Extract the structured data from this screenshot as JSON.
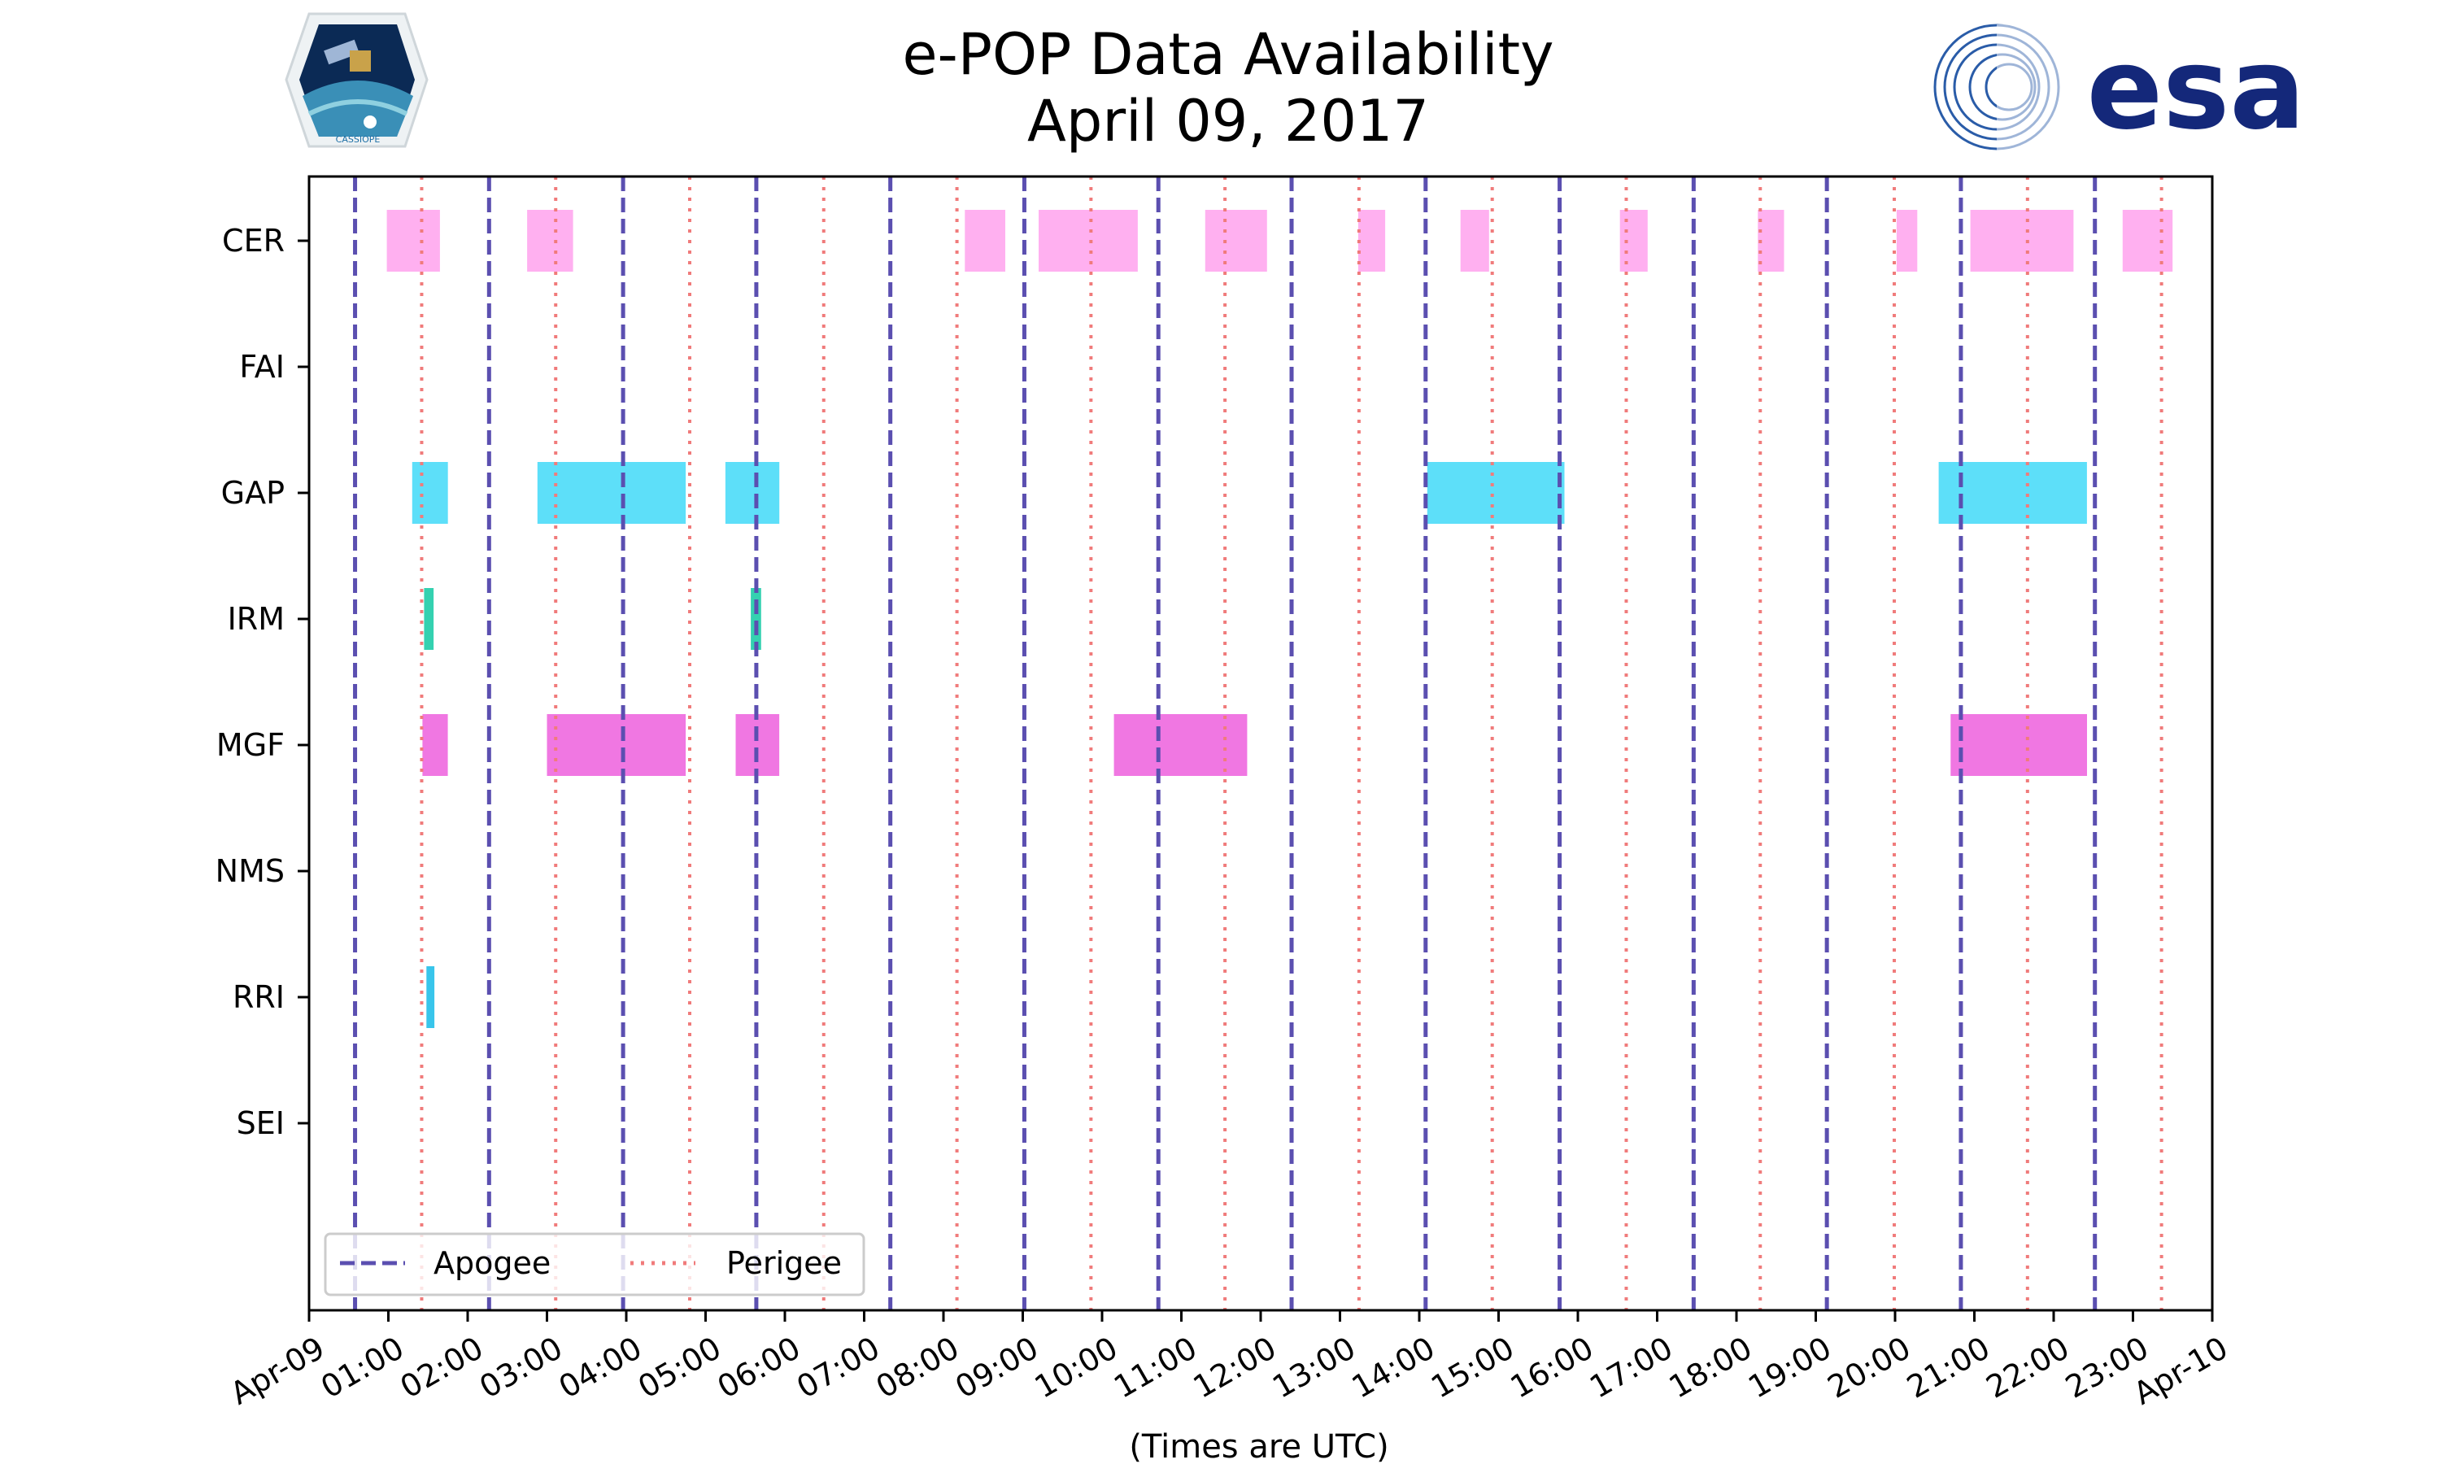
{
  "header": {
    "title_line1": "e-POP Data Availability",
    "title_line2": "April 09, 2017",
    "logo_left_text": "CASSIOPE",
    "logo_right_text": "esa"
  },
  "chart_data": {
    "type": "timeline",
    "title": "e-POP Data Availability",
    "subtitle": "April 09, 2017",
    "xlabel": "(Times are UTC)",
    "ylabel": "",
    "xlim_hours": [
      0,
      24
    ],
    "x_tick_labels": [
      "Apr-09",
      "01:00",
      "02:00",
      "03:00",
      "04:00",
      "05:00",
      "06:00",
      "07:00",
      "08:00",
      "09:00",
      "10:00",
      "11:00",
      "12:00",
      "13:00",
      "14:00",
      "15:00",
      "16:00",
      "17:00",
      "18:00",
      "19:00",
      "20:00",
      "21:00",
      "22:00",
      "23:00",
      "Apr-10"
    ],
    "instruments": [
      "CER",
      "FAI",
      "GAP",
      "IRM",
      "MGF",
      "NMS",
      "RRI",
      "SEI"
    ],
    "apogee_hours": [
      0.58,
      2.27,
      3.96,
      5.64,
      7.33,
      9.02,
      10.71,
      12.39,
      14.08,
      15.77,
      17.46,
      19.14,
      20.83,
      22.52
    ],
    "perigee_hours": [
      1.42,
      3.11,
      4.8,
      6.49,
      8.17,
      9.86,
      11.55,
      13.24,
      14.92,
      16.61,
      18.3,
      19.99,
      21.67,
      23.36
    ],
    "series": [
      {
        "name": "CER",
        "color": "#ffb0f0",
        "intervals": [
          [
            0.98,
            1.65
          ],
          [
            2.75,
            3.33
          ],
          [
            8.27,
            8.78
          ],
          [
            9.2,
            10.45
          ],
          [
            11.3,
            12.08
          ],
          [
            13.23,
            13.57
          ],
          [
            14.52,
            14.88
          ],
          [
            16.53,
            16.88
          ],
          [
            18.27,
            18.6
          ],
          [
            20.02,
            20.28
          ],
          [
            20.95,
            22.25
          ],
          [
            22.87,
            23.5
          ]
        ]
      },
      {
        "name": "FAI",
        "color": "#ffb0f0",
        "intervals": []
      },
      {
        "name": "GAP",
        "color": "#5ddff9",
        "intervals": [
          [
            1.3,
            1.75
          ],
          [
            2.88,
            4.75
          ],
          [
            5.25,
            5.93
          ],
          [
            14.1,
            15.83
          ],
          [
            20.55,
            22.42
          ]
        ]
      },
      {
        "name": "IRM",
        "color": "#34d1b0",
        "intervals": [
          [
            1.45,
            1.57
          ],
          [
            5.57,
            5.7
          ]
        ]
      },
      {
        "name": "MGF",
        "color": "#f077e2",
        "intervals": [
          [
            1.43,
            1.75
          ],
          [
            3.0,
            4.75
          ],
          [
            5.38,
            5.93
          ],
          [
            10.15,
            11.83
          ],
          [
            20.7,
            22.42
          ]
        ]
      },
      {
        "name": "NMS",
        "color": "#f077e2",
        "intervals": []
      },
      {
        "name": "RRI",
        "color": "#38c5eb",
        "intervals": [
          [
            1.48,
            1.58
          ]
        ]
      },
      {
        "name": "SEI",
        "color": "#38c5eb",
        "intervals": []
      }
    ],
    "legend": {
      "position": "lower-left",
      "entries": [
        {
          "label": "Apogee",
          "style": "dashed",
          "color": "#5b4fb0"
        },
        {
          "label": "Perigee",
          "style": "dotted",
          "color": "#f07b7b"
        }
      ]
    }
  }
}
